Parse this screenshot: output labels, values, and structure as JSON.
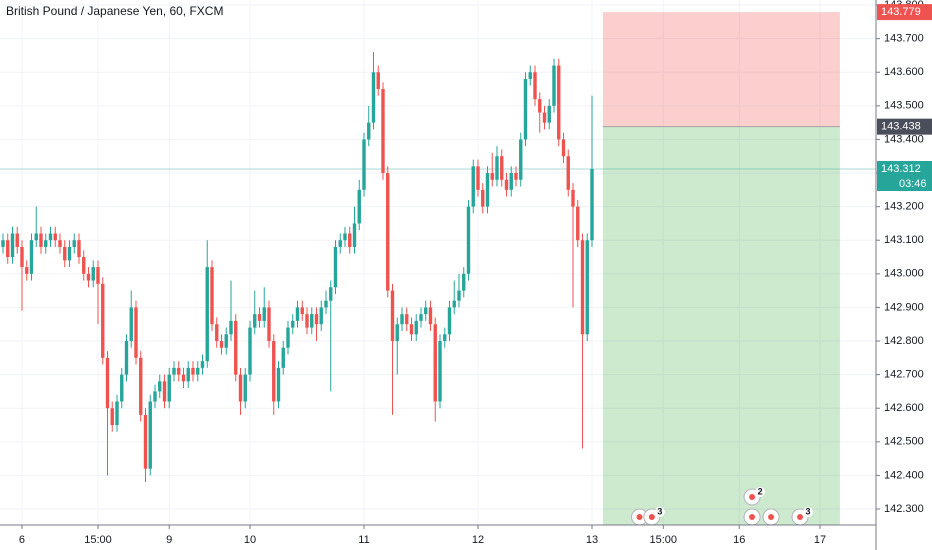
{
  "chart_data": {
    "type": "candlestick",
    "title": "British Pound / Japanese Yen, 60, FXCM",
    "up_color": "#26a69a",
    "down_color": "#ef5350",
    "grid": true,
    "xlim": [
      -4.63,
      179.79
    ],
    "ylim": [
      142.178,
      143.815
    ],
    "xticks": [
      {
        "value": 0,
        "label": "6"
      },
      {
        "value": 16,
        "label": "15:00"
      },
      {
        "value": 31,
        "label": "9"
      },
      {
        "value": 48,
        "label": "10"
      },
      {
        "value": 72,
        "label": "11"
      },
      {
        "value": 96,
        "label": "12"
      },
      {
        "value": 120,
        "label": "13"
      },
      {
        "value": 135,
        "label": "15:00"
      },
      {
        "value": 151,
        "label": "16"
      },
      {
        "value": 168,
        "label": "17"
      }
    ],
    "yticks": [
      {
        "value": 142.3,
        "label": "142.300"
      },
      {
        "value": 142.4,
        "label": "142.400"
      },
      {
        "value": 142.5,
        "label": "142.500"
      },
      {
        "value": 142.6,
        "label": "142.600"
      },
      {
        "value": 142.7,
        "label": "142.700"
      },
      {
        "value": 142.8,
        "label": "142.800"
      },
      {
        "value": 142.9,
        "label": "142.900"
      },
      {
        "value": 143.0,
        "label": "143.000"
      },
      {
        "value": 143.1,
        "label": "143.100"
      },
      {
        "value": 143.2,
        "label": "143.200"
      },
      {
        "value": 143.3,
        "label": "143.300"
      },
      {
        "value": 143.4,
        "label": "143.400"
      },
      {
        "value": 143.5,
        "label": "143.500"
      },
      {
        "value": 143.6,
        "label": "143.600"
      },
      {
        "value": 143.7,
        "label": "143.700"
      },
      {
        "value": 143.8,
        "label": "143.800"
      }
    ],
    "x": [
      -4,
      -3,
      -2,
      -1,
      0,
      1,
      2,
      3,
      4,
      5,
      6,
      7,
      8,
      9,
      10,
      11,
      12,
      13,
      14,
      15,
      16,
      17,
      18,
      19,
      20,
      21,
      22,
      23,
      24,
      25,
      26,
      27,
      28,
      29,
      30,
      31,
      32,
      33,
      34,
      35,
      36,
      37,
      38,
      39,
      40,
      41,
      42,
      43,
      44,
      45,
      46,
      47,
      48,
      49,
      50,
      51,
      52,
      53,
      54,
      55,
      56,
      57,
      58,
      59,
      60,
      61,
      62,
      63,
      64,
      65,
      66,
      67,
      68,
      69,
      70,
      71,
      72,
      73,
      74,
      75,
      76,
      77,
      78,
      79,
      80,
      81,
      82,
      83,
      84,
      85,
      86,
      87,
      88,
      89,
      90,
      91,
      92,
      93,
      94,
      95,
      96,
      97,
      98,
      99,
      100,
      101,
      102,
      103,
      104,
      105,
      106,
      107,
      108,
      109,
      110,
      111,
      112,
      113,
      114,
      115,
      116,
      117,
      118,
      119,
      120
    ],
    "open": [
      143.08,
      143.1,
      143.05,
      143.12,
      143.08,
      143.02,
      143.0,
      143.1,
      143.12,
      143.08,
      143.1,
      143.12,
      143.1,
      143.08,
      143.04,
      143.08,
      143.1,
      143.05,
      143.0,
      142.98,
      143.02,
      142.97,
      142.75,
      142.6,
      142.55,
      142.62,
      142.7,
      142.8,
      142.9,
      142.75,
      142.58,
      142.42,
      142.62,
      142.65,
      142.68,
      142.62,
      142.7,
      142.72,
      142.7,
      142.68,
      142.72,
      142.7,
      142.72,
      142.74,
      143.02,
      142.85,
      142.8,
      142.78,
      142.82,
      142.86,
      142.7,
      142.62,
      142.7,
      142.84,
      142.88,
      142.86,
      142.9,
      142.8,
      142.62,
      142.72,
      142.78,
      142.84,
      142.86,
      142.9,
      142.88,
      142.84,
      142.88,
      142.85,
      142.9,
      142.92,
      142.96,
      143.08,
      143.1,
      143.12,
      143.08,
      143.15,
      143.25,
      143.4,
      143.45,
      143.6,
      143.55,
      143.3,
      142.95,
      142.8,
      142.85,
      142.88,
      142.85,
      142.82,
      142.86,
      142.88,
      142.9,
      142.85,
      142.62,
      142.8,
      142.82,
      142.9,
      142.92,
      142.95,
      143.0,
      143.2,
      143.32,
      143.25,
      143.2,
      143.3,
      143.28,
      143.35,
      143.28,
      143.25,
      143.3,
      143.28,
      143.4,
      143.58,
      143.6,
      143.52,
      143.48,
      143.45,
      143.5,
      143.62,
      143.4,
      143.35,
      143.25,
      143.2,
      143.1,
      142.82,
      143.1
    ],
    "high": [
      143.12,
      143.12,
      143.14,
      143.14,
      143.1,
      143.04,
      143.12,
      143.2,
      143.14,
      143.12,
      143.14,
      143.14,
      143.12,
      143.1,
      143.1,
      143.12,
      143.12,
      143.07,
      143.02,
      143.04,
      143.04,
      142.99,
      142.77,
      142.62,
      142.64,
      142.72,
      142.82,
      142.95,
      142.92,
      142.77,
      142.6,
      142.64,
      142.67,
      142.7,
      142.7,
      142.72,
      142.74,
      142.74,
      142.72,
      142.74,
      142.74,
      142.74,
      142.76,
      143.1,
      143.04,
      142.87,
      142.82,
      142.84,
      142.98,
      142.88,
      142.72,
      142.72,
      142.86,
      142.95,
      142.9,
      142.96,
      142.92,
      142.82,
      142.74,
      142.8,
      142.86,
      142.88,
      142.92,
      142.92,
      142.9,
      142.9,
      142.9,
      142.92,
      142.95,
      142.98,
      143.1,
      143.12,
      143.14,
      143.14,
      143.2,
      143.28,
      143.42,
      143.5,
      143.66,
      143.62,
      143.57,
      143.32,
      142.97,
      142.87,
      142.9,
      142.9,
      142.87,
      142.88,
      142.9,
      142.92,
      142.92,
      142.87,
      142.82,
      142.84,
      142.92,
      142.98,
      143.0,
      143.02,
      143.22,
      143.34,
      143.34,
      143.27,
      143.32,
      143.36,
      143.38,
      143.37,
      143.3,
      143.32,
      143.32,
      143.42,
      143.6,
      143.62,
      143.62,
      143.54,
      143.5,
      143.52,
      143.64,
      143.64,
      143.42,
      143.37,
      143.27,
      143.22,
      143.12,
      143.12,
      143.53
    ],
    "low": [
      143.06,
      143.03,
      143.03,
      143.06,
      142.89,
      142.98,
      142.98,
      143.08,
      143.06,
      143.06,
      143.08,
      143.08,
      143.06,
      143.02,
      143.02,
      143.06,
      143.03,
      142.98,
      142.96,
      142.96,
      142.85,
      142.73,
      142.4,
      142.53,
      142.53,
      142.6,
      142.68,
      142.78,
      142.73,
      142.56,
      142.38,
      142.4,
      142.6,
      142.63,
      142.6,
      142.6,
      142.68,
      142.68,
      142.66,
      142.66,
      142.68,
      142.68,
      142.7,
      142.72,
      142.83,
      142.78,
      142.76,
      142.76,
      142.8,
      142.68,
      142.58,
      142.6,
      142.68,
      142.82,
      142.84,
      142.84,
      142.78,
      142.58,
      142.6,
      142.7,
      142.76,
      142.82,
      142.84,
      142.86,
      142.82,
      142.82,
      142.8,
      142.83,
      142.88,
      142.65,
      142.94,
      143.06,
      143.08,
      143.06,
      143.06,
      143.13,
      143.23,
      143.38,
      143.43,
      143.53,
      143.28,
      142.93,
      142.58,
      142.7,
      142.83,
      142.83,
      142.8,
      142.8,
      142.84,
      142.86,
      142.83,
      142.56,
      142.6,
      142.78,
      142.8,
      142.88,
      142.9,
      142.93,
      142.98,
      143.18,
      143.23,
      143.18,
      143.18,
      143.26,
      143.26,
      143.26,
      143.23,
      143.23,
      143.26,
      143.26,
      143.38,
      143.56,
      143.5,
      143.42,
      143.43,
      143.43,
      143.48,
      143.38,
      143.33,
      143.23,
      142.9,
      143.08,
      142.48,
      142.8,
      143.08
    ],
    "close": [
      143.1,
      143.05,
      143.12,
      143.08,
      143.02,
      143.0,
      143.1,
      143.12,
      143.08,
      143.1,
      143.12,
      143.1,
      143.08,
      143.04,
      143.08,
      143.1,
      143.05,
      143.0,
      142.98,
      143.02,
      142.97,
      142.75,
      142.6,
      142.55,
      142.62,
      142.7,
      142.8,
      142.9,
      142.75,
      142.58,
      142.42,
      142.62,
      142.65,
      142.68,
      142.62,
      142.7,
      142.72,
      142.7,
      142.68,
      142.72,
      142.7,
      142.72,
      142.74,
      143.02,
      142.85,
      142.8,
      142.78,
      142.82,
      142.86,
      142.7,
      142.62,
      142.7,
      142.84,
      142.88,
      142.86,
      142.9,
      142.8,
      142.62,
      142.72,
      142.78,
      142.84,
      142.86,
      142.9,
      142.88,
      142.84,
      142.88,
      142.85,
      142.9,
      142.92,
      142.96,
      143.08,
      143.1,
      143.12,
      143.08,
      143.15,
      143.25,
      143.4,
      143.45,
      143.6,
      143.55,
      143.3,
      142.95,
      142.8,
      142.85,
      142.88,
      142.85,
      142.82,
      142.86,
      142.88,
      142.9,
      142.85,
      142.62,
      142.8,
      142.82,
      142.9,
      142.92,
      142.95,
      143.0,
      143.2,
      143.32,
      143.25,
      143.2,
      143.3,
      143.28,
      143.35,
      143.28,
      143.25,
      143.3,
      143.28,
      143.4,
      143.58,
      143.6,
      143.52,
      143.48,
      143.45,
      143.5,
      143.62,
      143.4,
      143.35,
      143.25,
      143.2,
      143.1,
      142.82,
      143.1,
      143.312
    ],
    "current_price": {
      "value": 143.312,
      "label": "143.312",
      "countdown": "03:46",
      "color": "#26a69a"
    },
    "position": {
      "start": 122.3,
      "end": 172.2,
      "entry": {
        "value": 143.438,
        "label": "143.438"
      },
      "stop": {
        "value": 143.779,
        "label": "143.779"
      },
      "target": 142.252,
      "stop_color": "#ef5350",
      "target_color": "#4caf50"
    },
    "events": [
      {
        "x": 130.0
      },
      {
        "x": 132.6,
        "label": "3"
      },
      {
        "x": 153.7
      },
      {
        "x": 153.7,
        "label": "2"
      },
      {
        "x": 157.7
      },
      {
        "x": 163.8,
        "label": "3"
      }
    ]
  }
}
